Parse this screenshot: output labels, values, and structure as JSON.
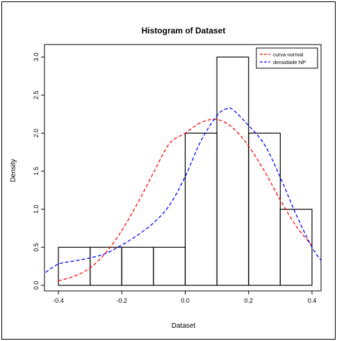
{
  "chart_data": {
    "type": "bar",
    "title": "Histogram of Dataset",
    "xlabel": "Dataset",
    "ylabel": "Density",
    "xlim": [
      -0.4,
      0.4
    ],
    "ylim": [
      0,
      3.0
    ],
    "x_ticks": [
      -0.4,
      -0.2,
      0.0,
      0.2,
      0.4
    ],
    "x_tick_labels": [
      "-0.4",
      "-0.2",
      "0.0",
      "0.2",
      "0.4"
    ],
    "y_ticks": [
      0,
      0.5,
      1.0,
      1.5,
      2.0,
      2.5,
      3.0
    ],
    "y_tick_labels": [
      "0.0",
      "0.5",
      "1.0",
      "1.5",
      "2.0",
      "2.5",
      "3.0"
    ],
    "bins": [
      {
        "x0": -0.4,
        "x1": -0.3,
        "density": 0.5
      },
      {
        "x0": -0.3,
        "x1": -0.2,
        "density": 0.5
      },
      {
        "x0": -0.2,
        "x1": -0.1,
        "density": 0.5
      },
      {
        "x0": -0.1,
        "x1": 0.0,
        "density": 0.5
      },
      {
        "x0": 0.0,
        "x1": 0.1,
        "density": 2.0
      },
      {
        "x0": 0.1,
        "x1": 0.2,
        "density": 3.0
      },
      {
        "x0": 0.2,
        "x1": 0.3,
        "density": 2.0
      },
      {
        "x0": 0.3,
        "x1": 0.4,
        "density": 1.0
      }
    ],
    "series": [
      {
        "name": "curva normal",
        "color": "#ff0000",
        "dash": true,
        "x": [
          -0.4,
          -0.35,
          -0.3,
          -0.25,
          -0.2,
          -0.15,
          -0.1,
          -0.05,
          0.0,
          0.05,
          0.1,
          0.15,
          0.2,
          0.25,
          0.3,
          0.35,
          0.4
        ],
        "y": [
          0.06,
          0.12,
          0.23,
          0.43,
          0.72,
          1.08,
          1.48,
          1.86,
          2.0,
          2.14,
          2.18,
          2.07,
          1.83,
          1.5,
          1.12,
          0.78,
          0.52
        ]
      },
      {
        "name": "densidade NP",
        "color": "#0000ff",
        "dash": true,
        "x": [
          -0.44,
          -0.4,
          -0.35,
          -0.3,
          -0.25,
          -0.2,
          -0.15,
          -0.1,
          -0.05,
          0.0,
          0.05,
          0.1,
          0.13,
          0.15,
          0.2,
          0.25,
          0.3,
          0.35,
          0.4,
          0.43
        ],
        "y": [
          0.17,
          0.28,
          0.32,
          0.36,
          0.42,
          0.53,
          0.66,
          0.82,
          1.05,
          1.43,
          1.9,
          2.23,
          2.32,
          2.31,
          2.1,
          1.85,
          1.42,
          0.93,
          0.5,
          0.32
        ]
      }
    ],
    "legend_position": "top-right"
  }
}
